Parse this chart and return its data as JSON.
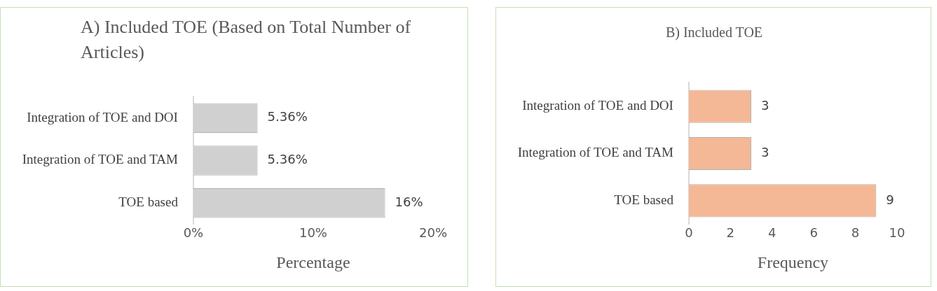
{
  "chart_data": [
    {
      "type": "bar",
      "orientation": "horizontal",
      "title": "A) Included TOE (Based on Total Number of Articles)",
      "xlabel": "Percentage",
      "categories": [
        "Integration of TOE and DOI",
        "Integration of TOE and TAM",
        "TOE based"
      ],
      "values": [
        5.36,
        5.36,
        16
      ],
      "value_labels": [
        "5.36%",
        "5.36%",
        "16%"
      ],
      "color": "#d0d0d0",
      "xlim": [
        0,
        20
      ],
      "xticks": [
        {
          "value": 0,
          "label": "0%"
        },
        {
          "value": 10,
          "label": "10%"
        },
        {
          "value": 20,
          "label": "20%"
        }
      ]
    },
    {
      "type": "bar",
      "orientation": "horizontal",
      "title": "B) Included TOE",
      "xlabel": "Frequency",
      "categories": [
        "Integration of TOE and DOI",
        "Integration of TOE and TAM",
        "TOE based"
      ],
      "values": [
        3,
        3,
        9
      ],
      "data_labels": true,
      "color": "#f4b896",
      "xlim": [
        0,
        10
      ],
      "xticks": [
        0,
        2,
        4,
        6,
        8,
        10
      ]
    }
  ]
}
